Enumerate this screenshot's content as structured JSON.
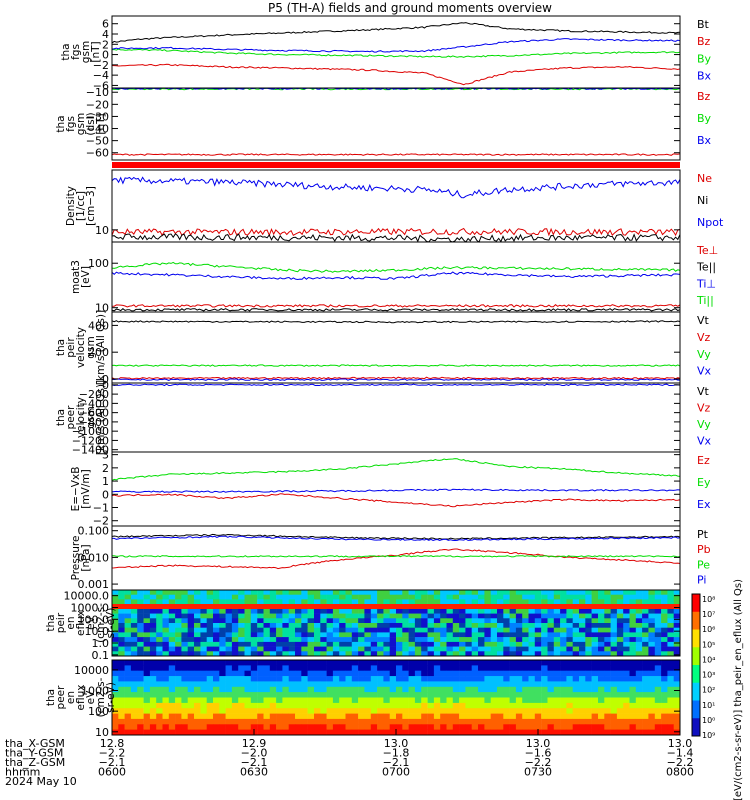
{
  "title": "P5 (TH-A) fields and ground moments overview",
  "colors": {
    "black": "#000000",
    "red": "#dd0000",
    "green": "#00dd00",
    "blue": "#0000ee"
  },
  "chart_data": [
    {
      "type": "line",
      "id": "p1",
      "ylabel": [
        "tha",
        "fgs",
        "gsm",
        "[nT]"
      ],
      "yrange": [
        -6.5,
        7.5
      ],
      "yticks": [
        "6",
        "4",
        "2",
        "0",
        "−2",
        "−4",
        "−6"
      ],
      "ytick_values": [
        6,
        4,
        2,
        0,
        -2,
        -4,
        -6
      ],
      "legend": [
        {
          "label": "Bt",
          "color": "black"
        },
        {
          "label": "Bz",
          "color": "red"
        },
        {
          "label": "By",
          "color": "green"
        },
        {
          "label": "Bx",
          "color": "blue"
        }
      ],
      "series": [
        {
          "name": "Bt",
          "color": "black",
          "x": [
            0,
            0.05,
            0.1,
            0.2,
            0.3,
            0.35,
            0.45,
            0.55,
            0.62,
            0.7,
            0.8,
            0.9,
            1.0
          ],
          "y": [
            2.4,
            3.0,
            3.3,
            3.8,
            4.2,
            4.4,
            4.8,
            5.3,
            6.2,
            5.0,
            4.6,
            4.4,
            4.2
          ]
        },
        {
          "name": "Bz",
          "color": "red",
          "x": [
            0,
            0.1,
            0.2,
            0.3,
            0.45,
            0.55,
            0.62,
            0.7,
            0.8,
            0.9,
            1.0
          ],
          "y": [
            -2.2,
            -2.0,
            -2.4,
            -2.6,
            -3.0,
            -3.6,
            -5.8,
            -3.4,
            -2.6,
            -2.4,
            -2.8
          ]
        },
        {
          "name": "By",
          "color": "green",
          "x": [
            0,
            0.1,
            0.2,
            0.3,
            0.45,
            0.55,
            0.62,
            0.7,
            0.8,
            0.9,
            1.0
          ],
          "y": [
            1.0,
            0.8,
            0.3,
            0.0,
            -0.2,
            -0.4,
            -0.4,
            -0.2,
            0.2,
            0.4,
            0.5
          ]
        },
        {
          "name": "Bx",
          "color": "blue",
          "x": [
            0,
            0.1,
            0.2,
            0.3,
            0.45,
            0.55,
            0.62,
            0.7,
            0.8,
            0.9,
            1.0
          ],
          "y": [
            1.2,
            1.3,
            1.0,
            0.8,
            0.6,
            0.7,
            1.5,
            2.5,
            3.0,
            2.8,
            2.7
          ]
        }
      ]
    },
    {
      "type": "line",
      "id": "p2",
      "ylabel": [
        "tha",
        "fgs",
        "gsm",
        "(dsl)",
        "[nT]"
      ],
      "yrange": [
        -66,
        -6.5
      ],
      "yticks": [
        "−10",
        "−20",
        "−30",
        "−40",
        "−50",
        "−60"
      ],
      "ytick_values": [
        -10,
        -20,
        -30,
        -40,
        -50,
        -60
      ],
      "legend": [
        {
          "label": "Bz",
          "color": "red"
        },
        {
          "label": "By",
          "color": "green"
        },
        {
          "label": "Bx",
          "color": "blue"
        }
      ],
      "series": [
        {
          "name": "Bz",
          "color": "red",
          "x": [
            0,
            0.5,
            1.0
          ],
          "y": [
            -61.5,
            -61.5,
            -61.5
          ]
        },
        {
          "name": "By",
          "color": "green",
          "x": [
            0,
            0.5,
            1.0
          ],
          "y": [
            -7.3,
            -7.3,
            -7.3
          ]
        },
        {
          "name": "Bx",
          "color": "blue",
          "x": [
            0,
            0.5,
            1.0
          ],
          "y": [
            -7.0,
            -7.0,
            -7.0
          ]
        }
      ]
    },
    {
      "type": "line",
      "id": "p3",
      "ylabel": [
        "Density",
        "[1/cc]",
        "[cm−3]"
      ],
      "yrange": [
        8.0,
        30
      ],
      "log": true,
      "yticks": [
        "10"
      ],
      "ytick_values": [
        10
      ],
      "legend": [
        {
          "label": "Ne",
          "color": "red"
        },
        {
          "label": "Ni",
          "color": "black"
        },
        {
          "label": "Npot",
          "color": "blue"
        }
      ],
      "series": [
        {
          "name": "Ne",
          "color": "red",
          "x": [
            0,
            0.3,
            0.6,
            1.0
          ],
          "y": [
            9.6,
            9.6,
            9.7,
            9.6
          ]
        },
        {
          "name": "Ni",
          "color": "black",
          "x": [
            0,
            0.3,
            0.5,
            0.62,
            0.7,
            1.0
          ],
          "y": [
            8.8,
            8.7,
            8.6,
            8.4,
            8.6,
            8.7
          ]
        },
        {
          "name": "Npot",
          "color": "blue",
          "x": [
            0,
            0.2,
            0.4,
            0.55,
            0.62,
            0.7,
            0.85,
            1.0
          ],
          "y": [
            25,
            24,
            22,
            21,
            19,
            21,
            23,
            24
          ]
        }
      ]
    },
    {
      "type": "line",
      "id": "p4",
      "ylabel": [
        "moat3",
        "[eV]"
      ],
      "yrange": [
        8,
        300
      ],
      "log": true,
      "yticks": [
        "100",
        "10"
      ],
      "ytick_values": [
        100,
        10
      ],
      "legend": [
        {
          "label": "Te⊥",
          "color": "red"
        },
        {
          "label": "Te||",
          "color": "black"
        },
        {
          "label": "Ti⊥",
          "color": "blue"
        },
        {
          "label": "Ti||",
          "color": "green"
        }
      ],
      "series": [
        {
          "name": "Te⊥",
          "color": "red",
          "x": [
            0,
            0.5,
            1.0
          ],
          "y": [
            11,
            11,
            11
          ]
        },
        {
          "name": "Te||",
          "color": "black",
          "x": [
            0,
            0.5,
            1.0
          ],
          "y": [
            9,
            9,
            9
          ]
        },
        {
          "name": "Ti⊥",
          "color": "blue",
          "x": [
            0,
            0.1,
            0.2,
            0.3,
            0.4,
            0.5,
            0.6,
            0.8,
            1.0
          ],
          "y": [
            60,
            55,
            50,
            45,
            48,
            45,
            60,
            50,
            55
          ]
        },
        {
          "name": "Ti||",
          "color": "green",
          "x": [
            0,
            0.1,
            0.2,
            0.3,
            0.4,
            0.5,
            0.6,
            0.8,
            1.0
          ],
          "y": [
            80,
            100,
            85,
            70,
            65,
            70,
            80,
            75,
            70
          ]
        }
      ]
    },
    {
      "type": "line",
      "id": "p5",
      "ylabel": [
        "tha",
        "peir",
        "velocity",
        "gsm",
        "[km/s (All Qs)]"
      ],
      "yrange": [
        -30,
        500
      ],
      "yticks": [
        "400",
        "200",
        "0"
      ],
      "ytick_values": [
        400,
        200,
        0
      ],
      "legend": [
        {
          "label": "Vt",
          "color": "black"
        },
        {
          "label": "Vz",
          "color": "red"
        },
        {
          "label": "Vy",
          "color": "green"
        },
        {
          "label": "Vx",
          "color": "blue"
        }
      ],
      "series": [
        {
          "name": "Vt",
          "color": "black",
          "x": [
            0,
            0.5,
            1.0
          ],
          "y": [
            430,
            425,
            430
          ]
        },
        {
          "name": "Vz",
          "color": "red",
          "x": [
            0,
            0.5,
            1.0
          ],
          "y": [
            5,
            8,
            5
          ]
        },
        {
          "name": "Vy",
          "color": "green",
          "x": [
            0,
            0.5,
            1.0
          ],
          "y": [
            100,
            100,
            100
          ]
        },
        {
          "name": "Vx",
          "color": "blue",
          "x": [
            0,
            0.5,
            1.0
          ],
          "y": [
            -5,
            -5,
            -5
          ]
        }
      ]
    },
    {
      "type": "line",
      "id": "p6",
      "ylabel": [
        "tha",
        "peer",
        "velocity",
        "gsm",
        "[km/s (All Qs)]"
      ],
      "yrange": [
        -1450,
        40
      ],
      "yticks": [
        "0",
        "−200",
        "−400",
        "−600",
        "−800",
        "−1000",
        "−1200",
        "−1400"
      ],
      "ytick_values": [
        0,
        -200,
        -400,
        -600,
        -800,
        -1000,
        -1200,
        -1400
      ],
      "legend": [
        {
          "label": "Vt",
          "color": "black"
        },
        {
          "label": "Vz",
          "color": "red"
        },
        {
          "label": "Vy",
          "color": "green"
        },
        {
          "label": "Vx",
          "color": "blue"
        }
      ],
      "series": [
        {
          "name": "Vx",
          "color": "blue",
          "x": [
            0,
            0.5,
            1.0
          ],
          "y": [
            0,
            0,
            0
          ]
        }
      ]
    },
    {
      "type": "line",
      "id": "p7",
      "ylabel": [
        "E=−VxB",
        "[mV/m]"
      ],
      "yrange": [
        -2.4,
        3.2
      ],
      "yticks": [
        "3",
        "2",
        "1",
        "0",
        "−1",
        "−2"
      ],
      "ytick_values": [
        3,
        2,
        1,
        0,
        -1,
        -2
      ],
      "legend": [
        {
          "label": "Ez",
          "color": "red"
        },
        {
          "label": "Ey",
          "color": "green"
        },
        {
          "label": "Ex",
          "color": "blue"
        }
      ],
      "series": [
        {
          "name": "Ez",
          "color": "red",
          "x": [
            0,
            0.1,
            0.2,
            0.3,
            0.4,
            0.5,
            0.6,
            0.7,
            0.8,
            0.9,
            1.0
          ],
          "y": [
            -0.1,
            0.0,
            -0.3,
            0.0,
            -0.3,
            -0.6,
            -0.9,
            -0.6,
            -0.4,
            -0.5,
            -0.4
          ]
        },
        {
          "name": "Ey",
          "color": "green",
          "x": [
            0,
            0.1,
            0.2,
            0.3,
            0.4,
            0.5,
            0.6,
            0.7,
            0.8,
            0.9,
            1.0
          ],
          "y": [
            1.1,
            1.5,
            1.6,
            1.7,
            1.9,
            2.3,
            2.7,
            2.1,
            1.9,
            1.6,
            1.4
          ]
        },
        {
          "name": "Ex",
          "color": "blue",
          "x": [
            0,
            0.2,
            0.4,
            0.6,
            0.8,
            1.0
          ],
          "y": [
            0.2,
            0.2,
            0.25,
            0.35,
            0.3,
            0.3
          ]
        }
      ]
    },
    {
      "type": "line",
      "id": "p8",
      "ylabel": [
        "Pressure",
        "[nPa]"
      ],
      "yrange": [
        0.0006,
        0.15
      ],
      "log": true,
      "yticks": [
        "0.100",
        "0.010",
        "0.001"
      ],
      "ytick_values": [
        0.1,
        0.01,
        0.001
      ],
      "legend": [
        {
          "label": "Pt",
          "color": "black"
        },
        {
          "label": "Pb",
          "color": "red"
        },
        {
          "label": "Pe",
          "color": "green"
        },
        {
          "label": "Pi",
          "color": "blue"
        }
      ],
      "series": [
        {
          "name": "Pt",
          "color": "black",
          "x": [
            0,
            0.2,
            0.4,
            0.6,
            0.8,
            1.0
          ],
          "y": [
            0.06,
            0.07,
            0.055,
            0.05,
            0.055,
            0.06
          ]
        },
        {
          "name": "Pb",
          "color": "red",
          "x": [
            0,
            0.1,
            0.2,
            0.3,
            0.4,
            0.5,
            0.6,
            0.7,
            0.8,
            0.9,
            1.0
          ],
          "y": [
            0.004,
            0.005,
            0.0045,
            0.004,
            0.008,
            0.012,
            0.02,
            0.015,
            0.01,
            0.008,
            0.006
          ]
        },
        {
          "name": "Pe",
          "color": "green",
          "x": [
            0,
            0.2,
            0.5,
            0.8,
            1.0
          ],
          "y": [
            0.011,
            0.011,
            0.011,
            0.011,
            0.011
          ]
        },
        {
          "name": "Pi",
          "color": "blue",
          "x": [
            0,
            0.2,
            0.4,
            0.6,
            0.8,
            1.0
          ],
          "y": [
            0.05,
            0.06,
            0.048,
            0.045,
            0.05,
            0.055
          ]
        }
      ]
    },
    {
      "type": "heatmap",
      "id": "p9",
      "ylabel": [
        "tha",
        "peir",
        "en",
        "eflux",
        "eV",
        "(cm2-s-",
        "sr-eV)"
      ],
      "yrange": [
        0.08,
        30000
      ],
      "log": true,
      "yticks": [
        "10000.0",
        "1000.0",
        "100.0",
        "10.0",
        "1.0",
        "0.1"
      ],
      "ytick_values": [
        10000,
        1000,
        100,
        10,
        1,
        0.1
      ]
    },
    {
      "type": "heatmap",
      "id": "p10",
      "ylabel": [
        "tha",
        "peer",
        "en",
        "eflux",
        "eV",
        "(cm2-s-",
        "sr-eV)"
      ],
      "yrange": [
        7,
        30000
      ],
      "log": true,
      "yticks": [
        "10000",
        "1000",
        "100",
        "10"
      ],
      "ytick_values": [
        10000,
        1000,
        100,
        10
      ]
    }
  ],
  "colorbar": {
    "ticks": [
      "10⁸",
      "10⁷",
      "10⁶",
      "10⁵",
      "10⁴",
      "10³",
      "10²",
      "10¹",
      "10⁰",
      "10⁹"
    ],
    "label": "[eV/(cm2-s-sr-eV)] tha_peir_en_eflux (All Qs)"
  },
  "xaxis": {
    "rows": [
      {
        "label": "tha_X-GSM",
        "values": [
          "12.8",
          "12.9",
          "13.0",
          "13.0",
          "13.0"
        ]
      },
      {
        "label": "tha_Y-GSM",
        "values": [
          "−2.2",
          "−2.0",
          "−1.8",
          "−1.6",
          "−1.4"
        ]
      },
      {
        "label": "tha_Z-GSM",
        "values": [
          "−2.1",
          "−2.1",
          "−2.1",
          "−2.2",
          "−2.2"
        ]
      },
      {
        "label": "hhmm",
        "values": [
          "0600",
          "0630",
          "0700",
          "0730",
          "0800"
        ]
      }
    ],
    "date": "2024 May 10"
  }
}
